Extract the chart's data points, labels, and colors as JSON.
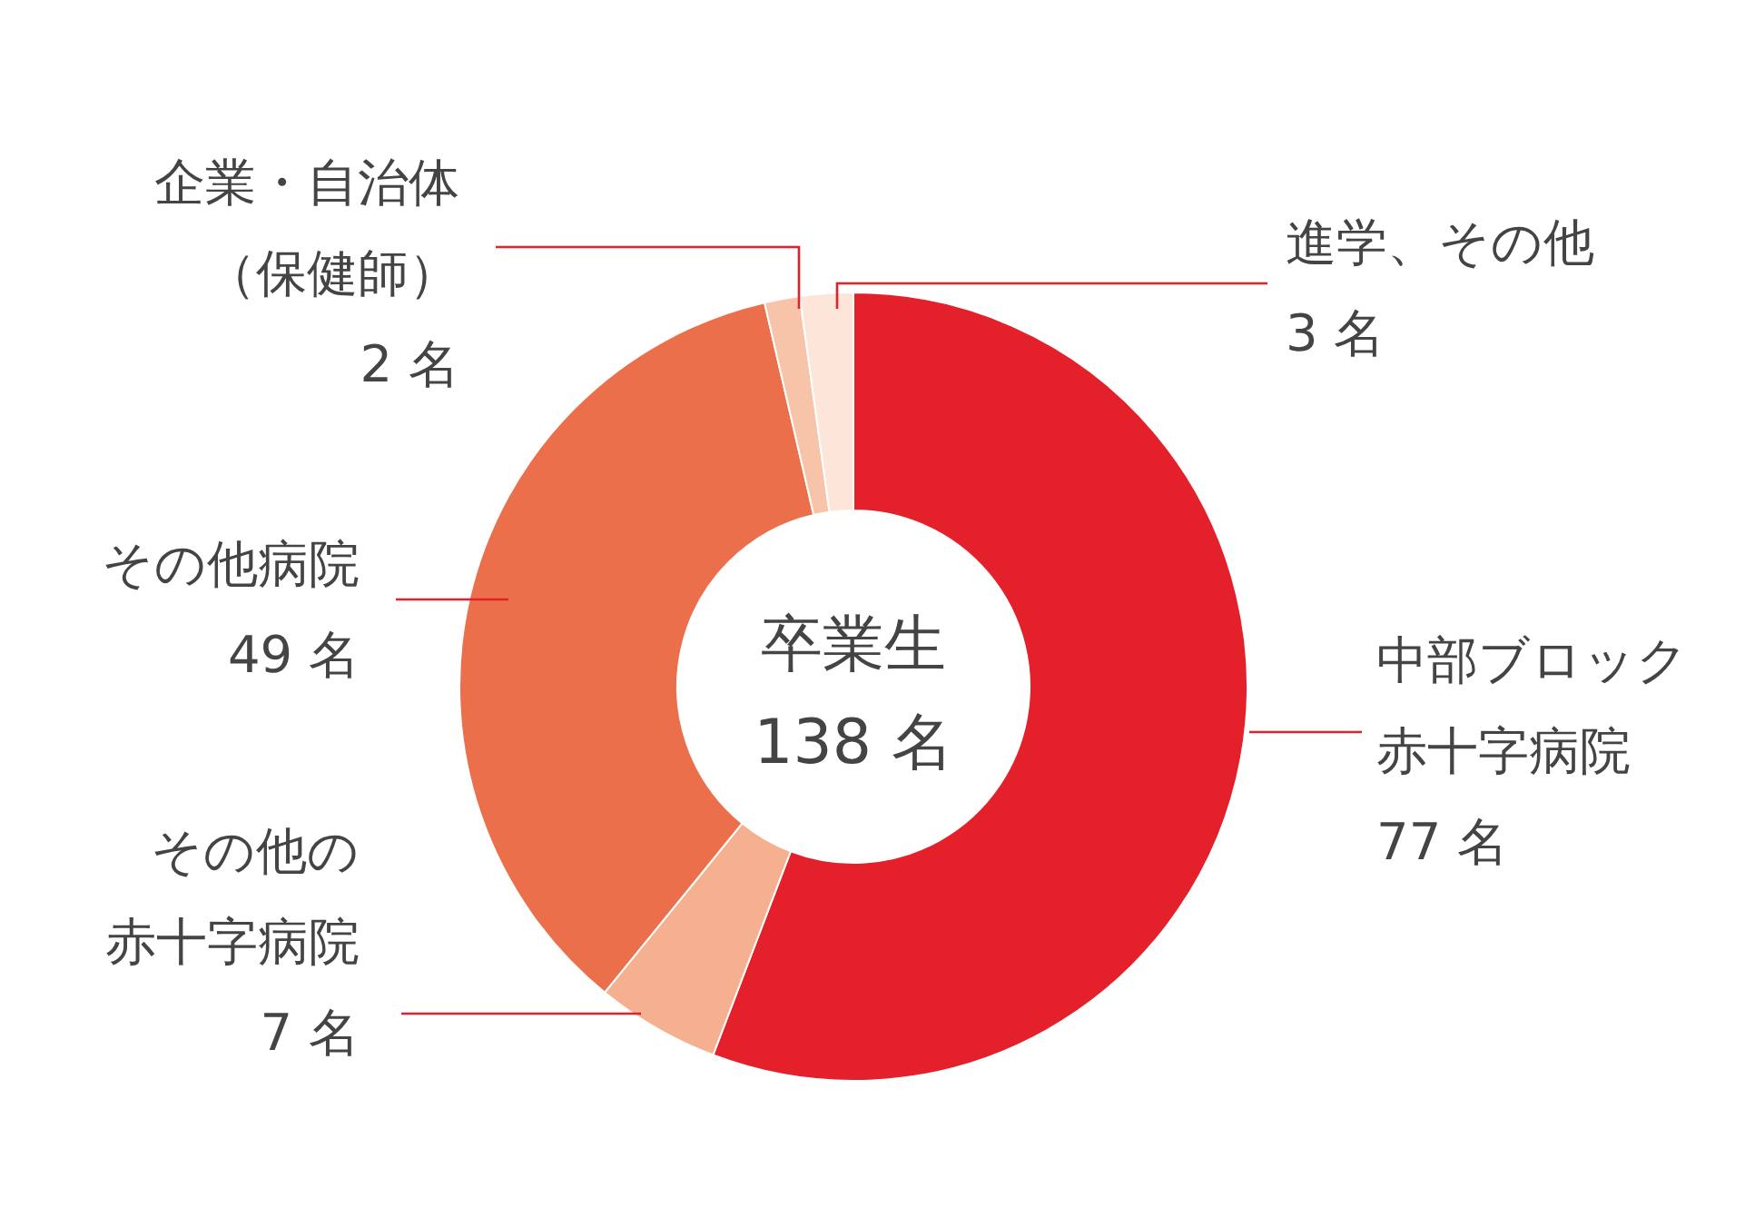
{
  "chart_data": {
    "type": "donut",
    "title": "卒業生",
    "annotations": [
      "138 名"
    ],
    "categories": [
      "中部ブロック赤十字病院",
      "その他の赤十字病院",
      "その他病院",
      "企業・自治体（保健師）",
      "進学、その他"
    ],
    "values": [
      77,
      7,
      49,
      2,
      3
    ],
    "value_labels": [
      "77 名",
      "7 名",
      "49 名",
      "2 名",
      "3 名"
    ],
    "colors": [
      "#e4202a",
      "#f4b08f",
      "#ec6f4c",
      "#f7c4aa",
      "#fde5da"
    ]
  }
}
